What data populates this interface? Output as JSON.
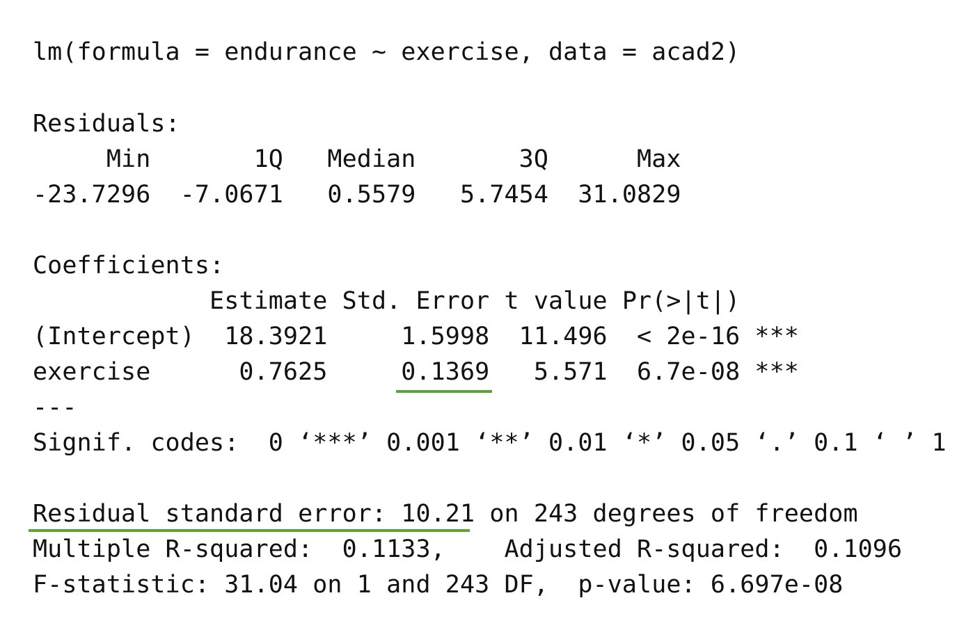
{
  "call": "lm(formula = endurance ~ exercise, data = acad2)",
  "residuals": {
    "heading": "Residuals:",
    "header_line": "     Min       1Q   Median       3Q      Max ",
    "values_line": "-23.7296  -7.0671   0.5579   5.7454  31.0829 "
  },
  "coefficients": {
    "heading": "Coefficients:",
    "header_line": "            Estimate Std. Error t value Pr(>|t|)    ",
    "rows": [
      "(Intercept)  18.3921     1.5998  11.496  < 2e-16 ***",
      "exercise      0.7625     0.1369   5.571  6.7e-08 ***"
    ],
    "separator": "---"
  },
  "signif_codes": "Signif. codes:  0 ‘***’ 0.001 ‘**’ 0.01 ‘*’ 0.05 ‘.’ 0.1 ‘ ’ 1",
  "summary": {
    "rse": "Residual standard error: 10.21 on 243 degrees of freedom",
    "r_squared": "Multiple R-squared:  0.1133,    Adjusted R-squared:  0.1096 ",
    "f_stat": "F-statistic: 31.04 on 1 and 243 DF,  p-value: 6.697e-08"
  },
  "highlight_color": "#5aa632"
}
